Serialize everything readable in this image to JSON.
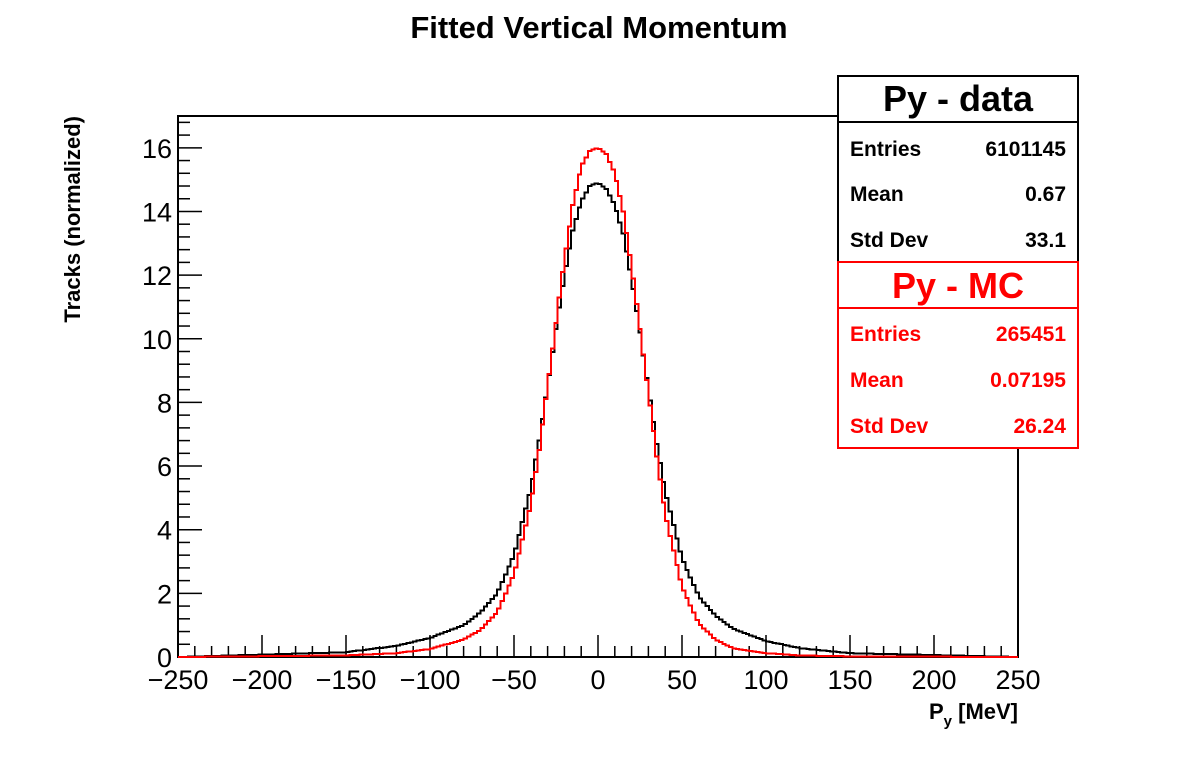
{
  "chart_data": {
    "type": "histogram",
    "title": "Fitted Vertical Momentum",
    "xlabel": "P",
    "xlabel_sub": "y",
    "xlabel_unit": " [MeV]",
    "ylabel": "Tracks (normalized)",
    "xlim": [
      -250,
      250
    ],
    "ylim": [
      0,
      17
    ],
    "xticks": [
      -250,
      -200,
      -150,
      -100,
      -50,
      0,
      50,
      100,
      150,
      200,
      250
    ],
    "xtick_labels": [
      "−250",
      "−200",
      "−150",
      "−100",
      "−50",
      "0",
      "50",
      "100",
      "150",
      "200",
      "250"
    ],
    "yticks": [
      0,
      2,
      4,
      6,
      8,
      10,
      12,
      14,
      16
    ],
    "ytick_labels": [
      "0",
      "2",
      "4",
      "6",
      "8",
      "10",
      "12",
      "14",
      "16"
    ],
    "bin_width": 2,
    "grid": false,
    "legend_position": "top-right",
    "series": [
      {
        "name": "Py - data",
        "color": "#000000",
        "x": [
          -150,
          -120,
          -100,
          -80,
          -70,
          -60,
          -50,
          -40,
          -35,
          -30,
          -25,
          -20,
          -15,
          -10,
          -5,
          0,
          5,
          10,
          15,
          20,
          25,
          30,
          35,
          40,
          50,
          60,
          70,
          80,
          100,
          120,
          150
        ],
        "y": [
          0.15,
          0.35,
          0.6,
          1.0,
          1.4,
          2.0,
          3.2,
          5.3,
          6.8,
          8.5,
          10.3,
          12.0,
          13.4,
          14.3,
          14.8,
          14.9,
          14.7,
          14.2,
          13.3,
          11.9,
          10.2,
          8.4,
          6.7,
          5.2,
          3.1,
          1.9,
          1.3,
          0.9,
          0.5,
          0.28,
          0.12
        ],
        "stats": {
          "entries_label": "Entries",
          "entries": "6101145",
          "mean_label": "Mean",
          "mean": "0.67",
          "stddev_label": "Std Dev",
          "stddev": "33.1"
        }
      },
      {
        "name": "Py - MC",
        "color": "#ff0000",
        "x": [
          -150,
          -120,
          -100,
          -80,
          -70,
          -60,
          -50,
          -40,
          -35,
          -30,
          -25,
          -20,
          -15,
          -10,
          -5,
          0,
          5,
          10,
          15,
          20,
          25,
          30,
          35,
          40,
          50,
          60,
          70,
          80,
          100,
          120,
          150
        ],
        "y": [
          0.05,
          0.12,
          0.25,
          0.55,
          0.85,
          1.4,
          2.6,
          4.8,
          6.5,
          8.5,
          10.5,
          12.5,
          14.2,
          15.4,
          15.9,
          16.0,
          15.8,
          15.2,
          14.0,
          12.3,
          10.3,
          8.3,
          6.3,
          4.5,
          2.2,
          1.05,
          0.55,
          0.28,
          0.12,
          0.05,
          0.02
        ],
        "stats": {
          "entries_label": "Entries",
          "entries": "265451",
          "mean_label": "Mean",
          "mean": "0.07195",
          "stddev_label": "Std Dev",
          "stddev": "26.24"
        }
      }
    ]
  }
}
